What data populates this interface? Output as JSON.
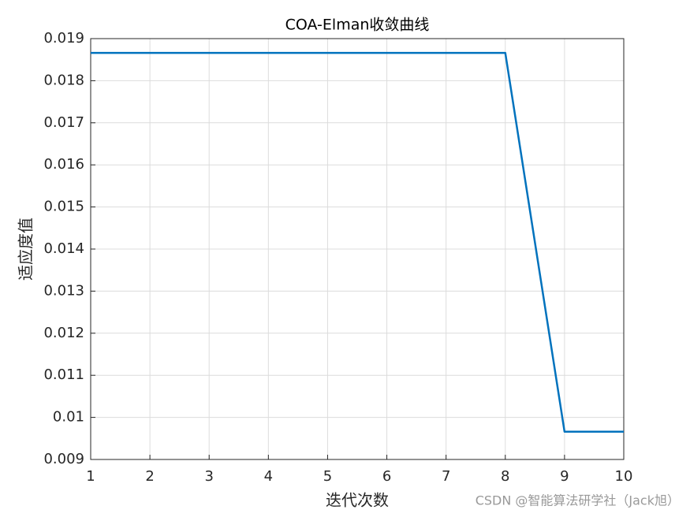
{
  "chart_data": {
    "type": "line",
    "title": "COA-Elman收敛曲线",
    "x_label": "迭代次数",
    "y_label": "适应度值",
    "x": [
      1,
      2,
      3,
      4,
      5,
      6,
      7,
      8,
      9,
      10
    ],
    "series": [
      {
        "name": "COA-Elman",
        "color": "#0072bd",
        "values": [
          0.01866,
          0.01866,
          0.01866,
          0.01866,
          0.01866,
          0.01866,
          0.01866,
          0.01866,
          0.00966,
          0.00966
        ]
      }
    ],
    "xlim": [
      1,
      10
    ],
    "xticks": [
      1,
      2,
      3,
      4,
      5,
      6,
      7,
      8,
      9,
      10
    ],
    "ylim": [
      0.009,
      0.019
    ],
    "yticks": [
      0.009,
      0.01,
      0.011,
      0.012,
      0.013,
      0.014,
      0.015,
      0.016,
      0.017,
      0.018,
      0.019
    ],
    "grid": true
  },
  "watermark": "CSDN @智能算法研学社（Jack旭）"
}
